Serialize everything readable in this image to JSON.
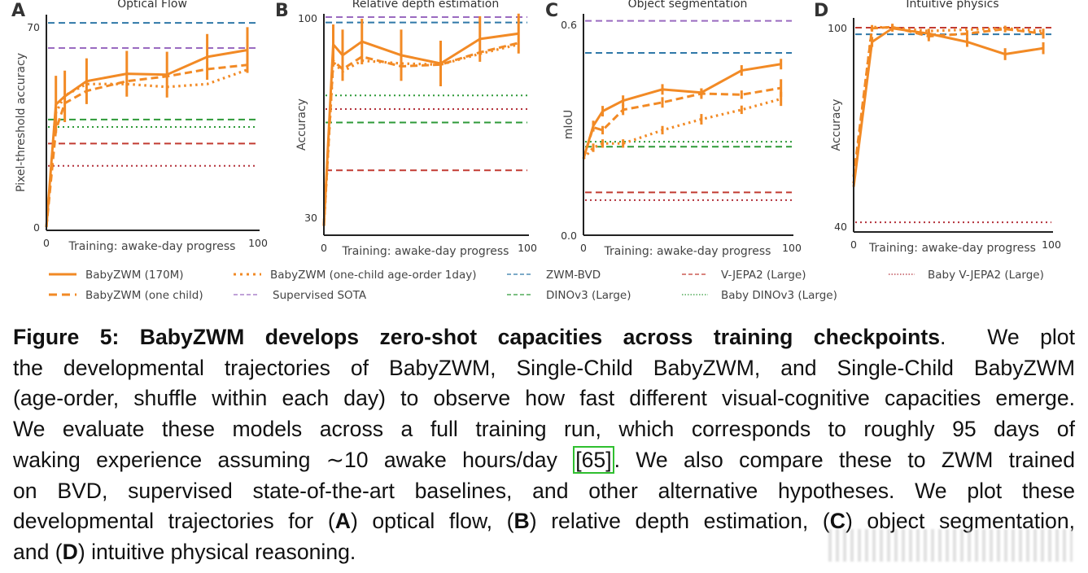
{
  "colors": {
    "orange": "#f28a25",
    "blue": "#2f78a8",
    "purple": "#9a6bc0",
    "green": "#2e9a38",
    "red": "#c23b32",
    "darkred": "#b3313a"
  },
  "legend": [
    {
      "label": "BabyZWM (170M)",
      "style": "solid",
      "color": "orange"
    },
    {
      "label": "BabyZWM (one-child age-order 1day)",
      "style": "dotted",
      "color": "orange"
    },
    {
      "label": "ZWM-BVD",
      "style": "dashed",
      "color": "blue"
    },
    {
      "label": "V-JEPA2 (Large)",
      "style": "dashed",
      "color": "red"
    },
    {
      "label": "Baby V-JEPA2 (Large)",
      "style": "dotted",
      "color": "darkred"
    },
    {
      "label": "BabyZWM (one child)",
      "style": "dashed",
      "color": "orange"
    },
    {
      "label": "Supervised SOTA",
      "style": "dashed",
      "color": "purple"
    },
    {
      "label": "DINOv3 (Large)",
      "style": "dashed",
      "color": "green"
    },
    {
      "label": "Baby DINOv3 (Large)",
      "style": "dotted",
      "color": "green"
    }
  ],
  "chart_data": [
    {
      "type": "line",
      "panel": "A",
      "title": "Optical Flow",
      "xlabel": "Training: awake-day progress",
      "ylabel": "Pixel-threshold accuracy",
      "xlim": [
        0,
        100
      ],
      "ylim": [
        0,
        70
      ],
      "xticks": [
        "0",
        "100"
      ],
      "yticks": [
        "0",
        "70"
      ],
      "grid": false,
      "x": [
        0,
        4.5,
        8.7,
        19,
        38,
        57,
        76,
        95
      ],
      "series": [
        {
          "name": "BabyZWM (170M)",
          "style": "solid",
          "values": [
            0,
            42.9,
            45.7,
            51,
            53.6,
            53.3,
            59.5,
            61.9
          ],
          "error": [
            0,
            10,
            9,
            8,
            8,
            8,
            8,
            8
          ]
        },
        {
          "name": "BabyZWM (one child)",
          "style": "dashed",
          "values": [
            0,
            34,
            43.3,
            47.6,
            51,
            52.7,
            55.2,
            56.7
          ]
        },
        {
          "name": "BabyZWM (one-child age-order 1day)",
          "style": "dotted",
          "values": [
            0,
            40,
            46,
            50,
            50,
            49,
            50,
            55
          ]
        }
      ],
      "baselines": [
        {
          "name": "ZWM-BVD",
          "value": 71.4
        },
        {
          "name": "Supervised SOTA",
          "value": 62.6
        },
        {
          "name": "DINOv3 (Large)",
          "value": 37.6
        },
        {
          "name": "Baby DINOv3 (Large)",
          "value": 35
        },
        {
          "name": "V-JEPA2 (Large)",
          "value": 29.2
        },
        {
          "name": "Baby V-JEPA2 (Large)",
          "value": 21.4
        }
      ]
    },
    {
      "type": "line",
      "panel": "B",
      "title": "Relative depth estimation",
      "xlabel": "Training: awake-day progress",
      "ylabel": "Accuracy",
      "xlim": [
        0,
        100
      ],
      "ylim": [
        30,
        100
      ],
      "xticks": [
        "0",
        "100"
      ],
      "yticks": [
        "30",
        "100"
      ],
      "grid": false,
      "x": [
        0,
        4.6,
        9.2,
        18.7,
        38,
        57.4,
        76.7,
        95.7
      ],
      "series": [
        {
          "name": "BabyZWM (170M)",
          "style": "solid",
          "values": [
            27,
            90.7,
            86.9,
            91.7,
            86.9,
            84,
            92.6,
            94.5
          ],
          "error": [
            0,
            7,
            9,
            8,
            9,
            8,
            8,
            7
          ]
        },
        {
          "name": "BabyZWM (one child)",
          "style": "dashed",
          "values": [
            27,
            85,
            82,
            86.4,
            83,
            83.6,
            87.9,
            91.2
          ]
        },
        {
          "name": "BabyZWM (one-child age-order 1day)",
          "style": "dotted",
          "values": [
            27,
            84.5,
            81.2,
            85,
            84,
            83.6,
            87.4,
            90.7
          ]
        }
      ],
      "baselines": [
        {
          "name": "Supervised SOTA",
          "value": 100.3
        },
        {
          "name": "ZWM-BVD",
          "value": 98.4
        },
        {
          "name": "Baby DINOv3 (Large)",
          "value": 72.8
        },
        {
          "name": "Baby V-JEPA2 (Large)",
          "value": 68
        },
        {
          "name": "DINOv3 (Large)",
          "value": 63.3
        },
        {
          "name": "V-JEPA2 (Large)",
          "value": 46.5
        }
      ]
    },
    {
      "type": "line",
      "panel": "C",
      "title": "Object segmentation",
      "xlabel": "Training: awake-day progress",
      "ylabel": "mIoU",
      "xlim": [
        0,
        100
      ],
      "ylim": [
        0,
        0.6
      ],
      "xticks": [
        "0",
        "100"
      ],
      "yticks": [
        "0.0",
        "0.6"
      ],
      "grid": false,
      "x": [
        0,
        4.7,
        9.2,
        19,
        37.9,
        56.6,
        75.9,
        94.8
      ],
      "series": [
        {
          "name": "BabyZWM (170M)",
          "style": "solid",
          "values": [
            0.218,
            0.311,
            0.353,
            0.383,
            0.415,
            0.406,
            0.469,
            0.487
          ],
          "error": [
            0,
            0.015,
            0.015,
            0.015,
            0.015,
            0.012,
            0.015,
            0.015
          ]
        },
        {
          "name": "BabyZWM (one child)",
          "style": "dashed",
          "values": [
            0.218,
            0.307,
            0.299,
            0.357,
            0.378,
            0.403,
            0.4,
            0.419
          ],
          "error": [
            0,
            0.012,
            0.012,
            0.015,
            0.015,
            0.015,
            0.012,
            0.025
          ]
        },
        {
          "name": "BabyZWM (one-child age-order 1day)",
          "style": "dotted",
          "values": [
            0.218,
            0.249,
            0.261,
            0.261,
            0.299,
            0.33,
            0.357,
            0.388
          ],
          "error": [
            0,
            0.012,
            0.012,
            0.012,
            0.012,
            0.015,
            0.012,
            0.02
          ]
        }
      ],
      "baselines": [
        {
          "name": "Supervised SOTA",
          "value": 0.61
        },
        {
          "name": "ZWM-BVD",
          "value": 0.519
        },
        {
          "name": "Baby DINOv3 (Large)",
          "value": 0.266
        },
        {
          "name": "DINOv3 (Large)",
          "value": 0.252
        },
        {
          "name": "V-JEPA2 (Large)",
          "value": 0.122
        },
        {
          "name": "Baby V-JEPA2 (Large)",
          "value": 0.1
        }
      ]
    },
    {
      "type": "line",
      "panel": "D",
      "title": "Intuitive physics",
      "xlabel": "Training: awake-day progress",
      "ylabel": "Accuracy",
      "xlim": [
        0,
        100
      ],
      "ylim": [
        40,
        100
      ],
      "xticks": [
        "0",
        "100"
      ],
      "yticks": [
        "40",
        "100"
      ],
      "grid": false,
      "x": [
        0,
        9.3,
        19.6,
        38,
        57.4,
        76.6,
        95.9
      ],
      "series": [
        {
          "name": "BabyZWM (170M)",
          "style": "solid",
          "values": [
            51.9,
            95.7,
            99.8,
            98.2,
            95.7,
            92,
            93.8
          ],
          "error": [
            0,
            1.5,
            1,
            1.5,
            1.5,
            1.8,
            1.8
          ]
        },
        {
          "name": "BabyZWM (one child)",
          "style": "dashed",
          "values": [
            55,
            99.8,
            100.2,
            97.4,
            98.2,
            99.6,
            98.2
          ],
          "error": [
            0,
            1,
            1,
            1.5,
            1,
            1,
            1.5
          ]
        },
        {
          "name": "BabyZWM (one-child age-order 1day)",
          "style": "dotted",
          "values": [
            53,
            100.2,
            100,
            99,
            99.4,
            99.8,
            99
          ]
        }
      ],
      "baselines": [
        {
          "name": "V-JEPA2 (Large)",
          "value": 100
        },
        {
          "name": "ZWM-BVD",
          "value": 98
        },
        {
          "name": "Baby V-JEPA2 (Large)",
          "value": 41.2
        }
      ]
    }
  ],
  "caption": {
    "l1_bold": "Figure 5: BabyZWM develops zero-shot capacities across training checkpoints",
    "l1_rest": ".  We plot",
    "l2": "the developmental trajectories of BabyZWM, Single-Child BabyZWM, and Single-Child BabyZWM",
    "l3": "(age-order, shuffle within each day) to observe how fast different visual-cognitive capacities emerge.",
    "l4": "We evaluate these models across a full training run, which corresponds to roughly 95 days of",
    "l5a": "waking experience assuming ∼10 awake hours/day ",
    "l5_ref": "[65]",
    "l5b": ". We also compare these to ZWM trained",
    "l6": "on BVD, supervised state-of-the-art baselines, and other alternative hypotheses. We plot these",
    "l7a": "developmental trajectories for (",
    "A": "A",
    "l7b": ") optical flow, (",
    "B": "B",
    "l7c": ") relative depth estimation, (",
    "C": "C",
    "l7d": ") object segmentation,",
    "l8a": "and (",
    "D": "D",
    "l8b": ") intuitive physical reasoning."
  }
}
